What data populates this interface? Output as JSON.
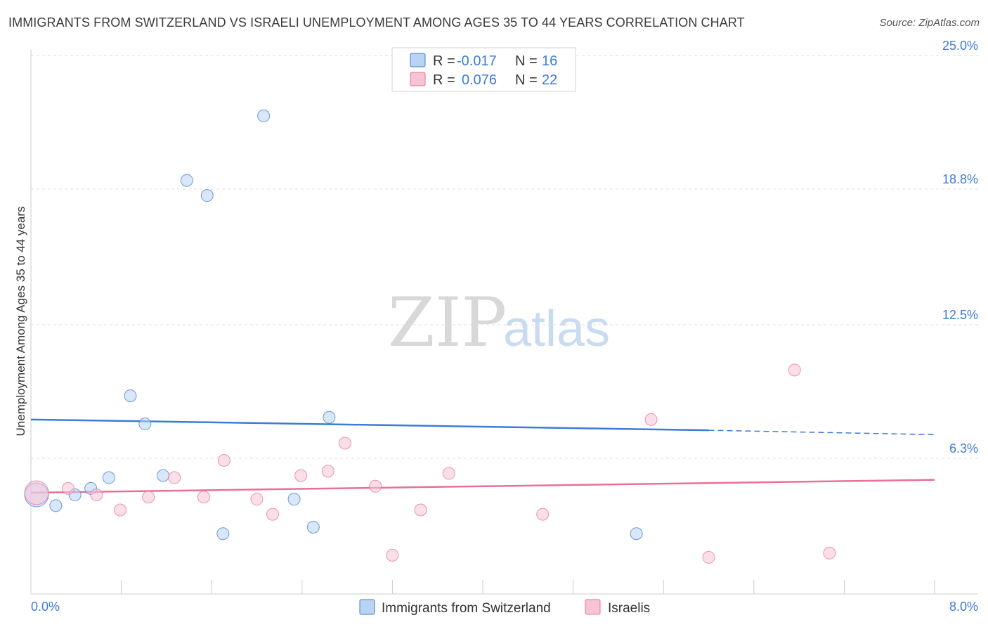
{
  "title": "IMMIGRANTS FROM SWITZERLAND VS ISRAELI UNEMPLOYMENT AMONG AGES 35 TO 44 YEARS CORRELATION CHART",
  "source": "Source: ZipAtlas.com",
  "watermark": {
    "zip": "ZIP",
    "atlas": "atlas"
  },
  "colors": {
    "blue": "#3d7bd6",
    "blue_fill": "#b9d3f3",
    "pink": "#e87099",
    "pink_fill": "#f7c4d6",
    "grid": "#dddddd",
    "axis_label": "#3d7bd6"
  },
  "legend": {
    "rows": [
      {
        "r_label": "R =",
        "r_value": "-0.017",
        "n_label": "N =",
        "n_value": "16",
        "series": "blue"
      },
      {
        "r_label": "R =",
        "r_value": "0.076",
        "n_label": "N =",
        "n_value": "22",
        "series": "pink"
      }
    ]
  },
  "chart_data": {
    "type": "scatter",
    "title": "IMMIGRANTS FROM SWITZERLAND VS ISRAELI UNEMPLOYMENT AMONG AGES 35 TO 44 YEARS CORRELATION CHART",
    "xlabel": "",
    "ylabel": "Unemployment Among Ages 35 to 44 years",
    "xlim": [
      0,
      8
    ],
    "ylim": [
      0,
      25
    ],
    "x_tick_labels": [
      "0.0%",
      "8.0%"
    ],
    "y_ticks": [
      6.3,
      12.5,
      18.8,
      25.0
    ],
    "y_tick_labels": [
      "6.3%",
      "12.5%",
      "18.8%",
      "25.0%"
    ],
    "grid": true,
    "series": [
      {
        "name": "Immigrants from Switzerland",
        "color": "blue",
        "points": [
          {
            "x": 0.05,
            "y": 4.6,
            "big": true
          },
          {
            "x": 0.22,
            "y": 4.1
          },
          {
            "x": 0.39,
            "y": 4.6
          },
          {
            "x": 0.53,
            "y": 4.9
          },
          {
            "x": 0.69,
            "y": 5.4
          },
          {
            "x": 0.88,
            "y": 9.2
          },
          {
            "x": 1.01,
            "y": 7.9
          },
          {
            "x": 1.17,
            "y": 5.5
          },
          {
            "x": 1.38,
            "y": 19.2
          },
          {
            "x": 1.56,
            "y": 18.5
          },
          {
            "x": 1.7,
            "y": 2.8
          },
          {
            "x": 2.06,
            "y": 22.2
          },
          {
            "x": 2.33,
            "y": 4.4
          },
          {
            "x": 2.5,
            "y": 3.1
          },
          {
            "x": 2.64,
            "y": 8.2
          },
          {
            "x": 5.36,
            "y": 2.8
          }
        ],
        "trend": {
          "x0": 0,
          "y0": 8.1,
          "x1": 6.0,
          "y1": 7.6,
          "dash_x1": 8.0,
          "dash_y1": 7.4
        }
      },
      {
        "name": "Israelis",
        "color": "pink",
        "points": [
          {
            "x": 0.05,
            "y": 4.7,
            "big": true
          },
          {
            "x": 0.33,
            "y": 4.9
          },
          {
            "x": 0.58,
            "y": 4.6
          },
          {
            "x": 0.79,
            "y": 3.9
          },
          {
            "x": 1.04,
            "y": 4.5
          },
          {
            "x": 1.27,
            "y": 5.4
          },
          {
            "x": 1.53,
            "y": 4.5
          },
          {
            "x": 1.71,
            "y": 6.2
          },
          {
            "x": 2.0,
            "y": 4.4
          },
          {
            "x": 2.14,
            "y": 3.7
          },
          {
            "x": 2.39,
            "y": 5.5
          },
          {
            "x": 2.63,
            "y": 5.7
          },
          {
            "x": 2.78,
            "y": 7.0
          },
          {
            "x": 3.05,
            "y": 5.0
          },
          {
            "x": 3.2,
            "y": 1.8
          },
          {
            "x": 3.45,
            "y": 3.9
          },
          {
            "x": 3.7,
            "y": 5.6
          },
          {
            "x": 4.53,
            "y": 3.7
          },
          {
            "x": 5.49,
            "y": 8.1
          },
          {
            "x": 6.0,
            "y": 1.7
          },
          {
            "x": 6.76,
            "y": 10.4
          },
          {
            "x": 7.07,
            "y": 1.9
          }
        ],
        "trend": {
          "x0": 0,
          "y0": 4.7,
          "x1": 8.0,
          "y1": 5.3
        }
      }
    ]
  },
  "bottom_legend": {
    "items": [
      {
        "label": "Immigrants from Switzerland",
        "series": "blue"
      },
      {
        "label": "Israelis",
        "series": "pink"
      }
    ]
  }
}
